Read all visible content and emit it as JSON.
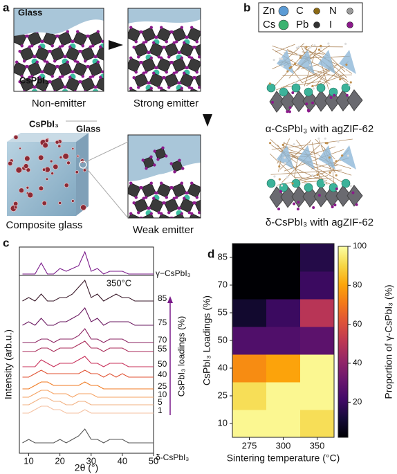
{
  "panels": {
    "a": {
      "label": "a",
      "glass": "Glass",
      "cspbi3": "CsPbI₃",
      "non_emitter": "Non-emitter",
      "strong_emitter": "Strong emitter",
      "cube_cspbi3": "CsPbI₃",
      "cube_glass": "Glass",
      "composite": "Composite glass",
      "weak_emitter": "Weak emitter"
    },
    "b": {
      "label": "b",
      "legend": [
        "Zn",
        "C",
        "N",
        "Cs",
        "Pb",
        "I"
      ],
      "legend_colors": [
        "#5b9bd5",
        "#8b6914",
        "#9a9a9a",
        "#3cb371",
        "#333333",
        "#8b1a8b"
      ],
      "alpha_caption": "α-CsPbI₃ with agZIF-62",
      "delta_caption": "δ-CsPbI₃ with agZIF-62"
    }
  },
  "chart_data": [
    {
      "type": "line",
      "panel_label": "c",
      "xlabel": "2θ (°)",
      "ylabel": "Intensity (arb.u.)",
      "annotation": "350°C",
      "loadings_label": "CsPbI₃ loadings (%)",
      "x": [
        8,
        10,
        12,
        14,
        16,
        18,
        20,
        22,
        24,
        26,
        28,
        30,
        32,
        34,
        36,
        38,
        40,
        42,
        44,
        46,
        48,
        50
      ],
      "xlim": [
        7,
        50
      ],
      "xticks": [
        10,
        20,
        30,
        40,
        50
      ],
      "series": [
        {
          "name": "γ−CsPbI₃",
          "color": "#7a1a8a",
          "values": [
            0,
            0,
            0,
            4,
            0,
            0,
            2,
            1,
            2,
            3,
            8,
            1,
            2,
            0,
            1,
            1,
            1,
            0,
            0,
            0,
            0,
            0
          ]
        },
        {
          "name": "85",
          "color": "#3a1a2a",
          "values": [
            0,
            1,
            0,
            2,
            0,
            0,
            1,
            1,
            2,
            4,
            6,
            1,
            2,
            0,
            1,
            2,
            1,
            1,
            0,
            0,
            0,
            0
          ]
        },
        {
          "name": "75",
          "color": "#6a1860",
          "values": [
            0,
            1,
            0,
            2,
            0,
            0,
            1,
            1,
            2,
            3,
            5,
            1,
            2,
            0,
            1,
            1,
            1,
            1,
            0,
            0,
            0,
            0
          ]
        },
        {
          "name": "70",
          "color": "#8a2060",
          "values": [
            0,
            0,
            0,
            1,
            1,
            0,
            1,
            1,
            1,
            2,
            4,
            1,
            1,
            0,
            1,
            1,
            1,
            0,
            0,
            0,
            0,
            0
          ]
        },
        {
          "name": "55",
          "color": "#a82a58",
          "values": [
            0,
            0,
            0,
            1,
            1,
            0,
            1,
            1,
            1,
            2,
            3,
            1,
            1,
            0,
            1,
            1,
            1,
            0,
            0,
            0,
            0,
            0
          ]
        },
        {
          "name": "50",
          "color": "#c8305a",
          "values": [
            0,
            0,
            0,
            2,
            1,
            0,
            1,
            1,
            1,
            2,
            3,
            1,
            1,
            0,
            1,
            1,
            1,
            0,
            0,
            0,
            0,
            0
          ]
        },
        {
          "name": "40",
          "color": "#e05030",
          "values": [
            0,
            0,
            1,
            2,
            1,
            1,
            1,
            1,
            1,
            1,
            2,
            1,
            1,
            0,
            1,
            0,
            1,
            0,
            0,
            0,
            0,
            0
          ]
        },
        {
          "name": "25",
          "color": "#f07a20",
          "values": [
            0,
            0,
            1,
            2,
            2,
            1,
            1,
            1,
            1,
            1,
            2,
            1,
            1,
            0,
            0,
            0,
            0,
            0,
            0,
            0,
            0,
            0
          ]
        },
        {
          "name": "10",
          "color": "#f5a060",
          "values": [
            0,
            0,
            1,
            2,
            2,
            1,
            1,
            1,
            0,
            1,
            1,
            1,
            0,
            0,
            0,
            0,
            0,
            0,
            0,
            0,
            0,
            0
          ]
        },
        {
          "name": "5",
          "color": "#f2b080",
          "values": [
            0,
            0,
            1,
            2,
            2,
            1,
            1,
            0,
            0,
            1,
            1,
            0,
            0,
            0,
            0,
            0,
            0,
            0,
            0,
            0,
            0,
            0
          ]
        },
        {
          "name": "1",
          "color": "#f5c0a0",
          "values": [
            0,
            0,
            1,
            2,
            2,
            1,
            1,
            0,
            0,
            0,
            1,
            0,
            0,
            0,
            0,
            0,
            0,
            0,
            0,
            0,
            0,
            0
          ]
        },
        {
          "name": "δ-CsPbI₃",
          "color": "#555555",
          "values": [
            0,
            1,
            0,
            0,
            0,
            0,
            1,
            0,
            1,
            2,
            4,
            1,
            1,
            0,
            1,
            1,
            1,
            0,
            0,
            0,
            0,
            0
          ]
        }
      ]
    },
    {
      "type": "heatmap",
      "panel_label": "d",
      "xlabel": "Sintering temperature (°C)",
      "ylabel": "CsPbI₃ Loadings (%)",
      "colorbar_label": "Proportion of γ-CsPbI₃ (%)",
      "x_categories": [
        "275",
        "300",
        "350"
      ],
      "y_categories": [
        "10",
        "25",
        "40",
        "50",
        "55",
        "70",
        "85"
      ],
      "values": [
        [
          98,
          98,
          92
        ],
        [
          92,
          98,
          98
        ],
        [
          75,
          80,
          98
        ],
        [
          25,
          25,
          28
        ],
        [
          10,
          20,
          50
        ],
        [
          2,
          2,
          20
        ],
        [
          2,
          2,
          15
        ]
      ],
      "zlim": [
        2,
        100
      ],
      "zticks": [
        20,
        40,
        60,
        80,
        100
      ]
    }
  ]
}
